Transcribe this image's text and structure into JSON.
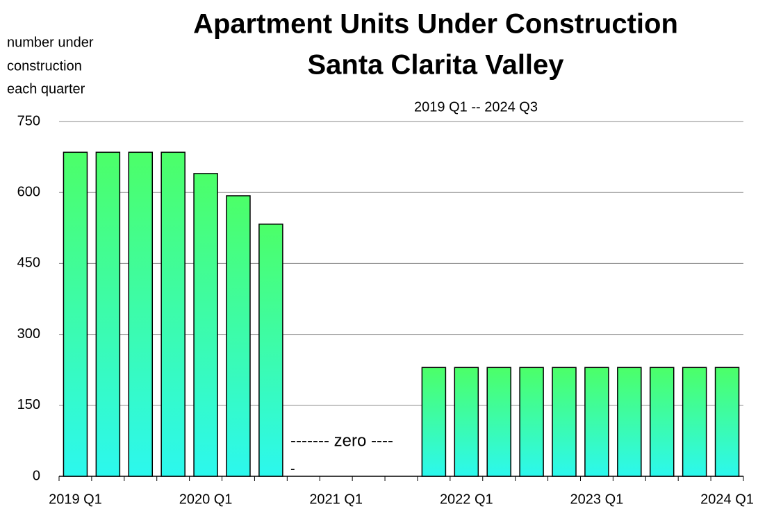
{
  "chart_data": {
    "type": "bar",
    "title": [
      "Apartment Units Under Construction",
      "Santa Clarita Valley"
    ],
    "subtitle": "2019 Q1 -- 2024 Q3",
    "y_label": [
      "number under",
      "construction",
      "each quarter"
    ],
    "annotation": [
      "------- zero ----",
      "-"
    ],
    "categories": [
      "2019 Q1",
      null,
      null,
      null,
      "2020 Q1",
      null,
      null,
      null,
      "2021 Q1",
      null,
      null,
      null,
      "2022 Q1",
      null,
      null,
      null,
      "2023 Q1",
      null,
      null,
      null,
      "2024 Q1"
    ],
    "values": [
      685,
      685,
      685,
      685,
      640,
      593,
      533,
      0,
      0,
      0,
      0,
      230,
      230,
      230,
      230,
      230,
      230,
      230,
      230,
      230,
      230
    ],
    "color_top": "#4cff68",
    "color_bottom": "#2cf8ee",
    "ylim": [
      0,
      750
    ],
    "yticks": [
      0,
      150,
      300,
      450,
      600,
      750
    ],
    "grid": true
  }
}
